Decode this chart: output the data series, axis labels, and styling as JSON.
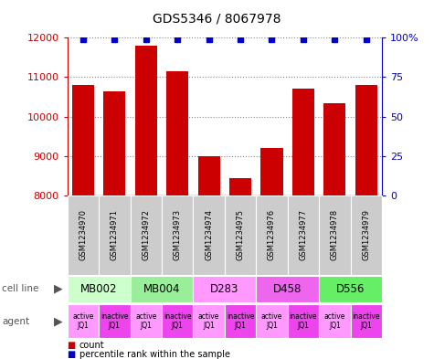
{
  "title": "GDS5346 / 8067978",
  "samples": [
    "GSM1234970",
    "GSM1234971",
    "GSM1234972",
    "GSM1234973",
    "GSM1234974",
    "GSM1234975",
    "GSM1234976",
    "GSM1234977",
    "GSM1234978",
    "GSM1234979"
  ],
  "counts": [
    10800,
    10650,
    11800,
    11150,
    9000,
    8450,
    9200,
    10700,
    10350,
    10800
  ],
  "percentiles": [
    99,
    99,
    99,
    99,
    99,
    99,
    99,
    99,
    99,
    99
  ],
  "ylim": [
    8000,
    12000
  ],
  "yticks": [
    8000,
    9000,
    10000,
    11000,
    12000
  ],
  "right_yticks": [
    0,
    25,
    50,
    75,
    100
  ],
  "bar_color": "#cc0000",
  "dot_color": "#0000cc",
  "cell_lines": [
    {
      "label": "MB002",
      "span": [
        0,
        2
      ],
      "color": "#ccffcc"
    },
    {
      "label": "MB004",
      "span": [
        2,
        4
      ],
      "color": "#99ee99"
    },
    {
      "label": "D283",
      "span": [
        4,
        6
      ],
      "color": "#ff99ff"
    },
    {
      "label": "D458",
      "span": [
        6,
        8
      ],
      "color": "#ee66ee"
    },
    {
      "label": "D556",
      "span": [
        8,
        10
      ],
      "color": "#66ee66"
    }
  ],
  "agents": [
    {
      "label": "active\nJQ1",
      "color": "#ff99ff"
    },
    {
      "label": "inactive\nJQ1",
      "color": "#ee44ee"
    },
    {
      "label": "active\nJQ1",
      "color": "#ff99ff"
    },
    {
      "label": "inactive\nJQ1",
      "color": "#ee44ee"
    },
    {
      "label": "active\nJQ1",
      "color": "#ff99ff"
    },
    {
      "label": "inactive\nJQ1",
      "color": "#ee44ee"
    },
    {
      "label": "active\nJQ1",
      "color": "#ff99ff"
    },
    {
      "label": "inactive\nJQ1",
      "color": "#ee44ee"
    },
    {
      "label": "active\nJQ1",
      "color": "#ff99ff"
    },
    {
      "label": "inactive\nJQ1",
      "color": "#ee44ee"
    }
  ],
  "ylabel_left_color": "#cc0000",
  "ylabel_right_color": "#0000cc",
  "grid_color": "#888888",
  "sample_bg": "#cccccc",
  "left_label_color": "#555555"
}
